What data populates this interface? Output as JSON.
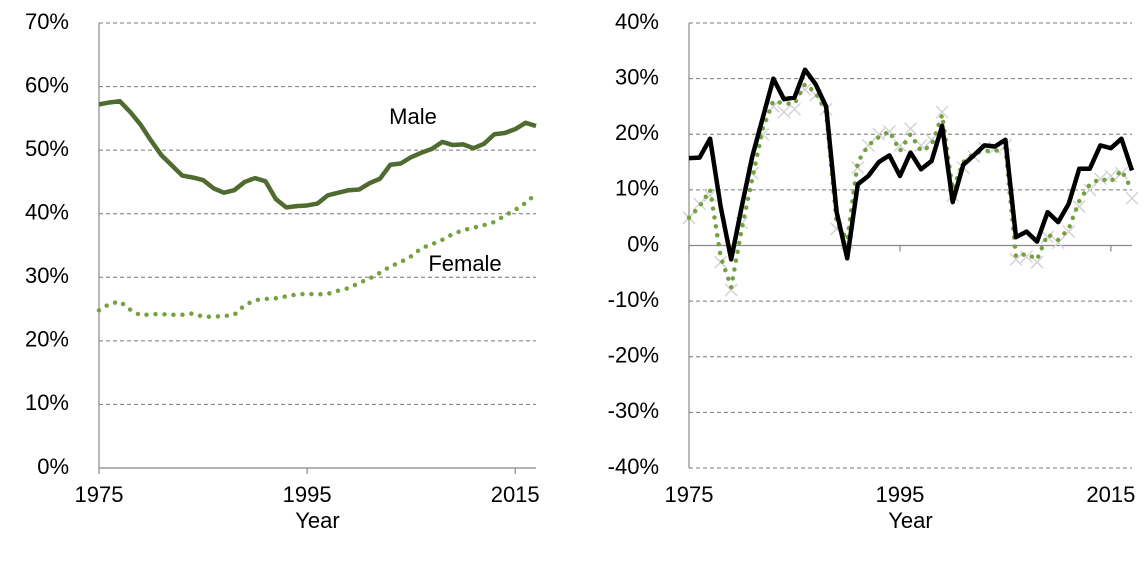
{
  "chart_data": [
    {
      "type": "line",
      "x": [
        1975,
        1976,
        1977,
        1978,
        1979,
        1980,
        1981,
        1982,
        1983,
        1984,
        1985,
        1986,
        1987,
        1988,
        1989,
        1990,
        1991,
        1992,
        1993,
        1994,
        1995,
        1996,
        1997,
        1998,
        1999,
        2000,
        2001,
        2002,
        2003,
        2004,
        2005,
        2006,
        2007,
        2008,
        2009,
        2010,
        2011,
        2012,
        2013,
        2014,
        2015,
        2016,
        2017
      ],
      "series": [
        {
          "name": "Male",
          "color": "#4f6b2f",
          "line_style": "solid",
          "values": [
            57.2,
            57.5,
            57.7,
            56,
            54,
            51.5,
            49.2,
            47.6,
            46,
            45.7,
            45.3,
            44,
            43.3,
            43.7,
            45,
            45.6,
            45.1,
            42.3,
            41,
            41.2,
            41.3,
            41.6,
            42.9,
            43.3,
            43.7,
            43.8,
            44.8,
            45.5,
            47.7,
            47.9,
            48.9,
            49.6,
            50.2,
            51.3,
            50.8,
            50.9,
            50.3,
            51,
            52.5,
            52.7,
            53.3,
            54.3,
            53.8
          ]
        },
        {
          "name": "Female",
          "color": "#77a040",
          "line_style": "dotted",
          "values": [
            24.8,
            25.8,
            26.2,
            24.9,
            24,
            24.2,
            24.2,
            24.1,
            24.1,
            24.3,
            23.8,
            23.8,
            23.9,
            24.1,
            25.6,
            26.4,
            26.6,
            26.7,
            27,
            27.3,
            27.4,
            27.3,
            27.4,
            27.9,
            28.3,
            29.1,
            29.8,
            30.7,
            31.7,
            32.4,
            33.3,
            34.6,
            35.2,
            35.9,
            36.8,
            37.4,
            37.8,
            38.2,
            38.7,
            39.7,
            40.6,
            41.7,
            43.1
          ]
        }
      ],
      "xlim": [
        1975,
        2017
      ],
      "xticks": [
        1975,
        1995,
        2015
      ],
      "ylim": [
        0,
        70
      ],
      "yticks": [
        {
          "value": 0,
          "label": "0%"
        },
        {
          "value": 10,
          "label": "10%"
        },
        {
          "value": 20,
          "label": "20%"
        },
        {
          "value": 30,
          "label": "30%"
        },
        {
          "value": 40,
          "label": "40%"
        },
        {
          "value": 50,
          "label": "50%"
        },
        {
          "value": 60,
          "label": "60%"
        },
        {
          "value": 70,
          "label": "70%"
        }
      ],
      "grid": true,
      "xlabel": "Year",
      "annotations": [
        "Male",
        "Female"
      ]
    },
    {
      "type": "line",
      "x": [
        1975,
        1976,
        1977,
        1978,
        1979,
        1980,
        1981,
        1982,
        1983,
        1984,
        1985,
        1986,
        1987,
        1988,
        1989,
        1990,
        1991,
        1992,
        1993,
        1994,
        1995,
        1996,
        1997,
        1998,
        1999,
        2000,
        2001,
        2002,
        2003,
        2004,
        2005,
        2006,
        2007,
        2008,
        2009,
        2010,
        2011,
        2012,
        2013,
        2014,
        2015,
        2016,
        2017
      ],
      "series": [
        {
          "color": "#d4d4d4",
          "line_style": "markers",
          "values": [
            5,
            7.5,
            9,
            -3,
            -8,
            4,
            13,
            20,
            25,
            24,
            24.5,
            28,
            27,
            24.5,
            3,
            0.5,
            14,
            18,
            20,
            20.5,
            18,
            21,
            18,
            19,
            24,
            9,
            14,
            16,
            17.5,
            17.5,
            18,
            -2.5,
            -2,
            -3,
            1.5,
            0.5,
            2.5,
            7,
            10,
            12,
            12.5,
            13,
            8.5
          ]
        },
        {
          "color": "#77a043",
          "line_style": "dotted",
          "values": [
            5,
            7,
            10,
            -2,
            -7.5,
            3,
            12,
            21,
            26,
            25.5,
            25.5,
            29,
            27.5,
            24,
            4,
            1,
            15,
            18,
            19.5,
            20.5,
            17,
            20,
            17,
            18,
            23.5,
            10,
            15,
            16.5,
            17,
            17,
            17.5,
            -2,
            -1.5,
            -2.5,
            2,
            1,
            3,
            8,
            11,
            12,
            11.5,
            13.5,
            10
          ]
        },
        {
          "color": "#000000",
          "line_style": "solid",
          "values": [
            15.7,
            15.8,
            19.2,
            7,
            -2.5,
            7,
            16,
            23,
            30,
            26.3,
            26.6,
            31.6,
            29,
            25,
            6,
            -2.3,
            11,
            12.5,
            15,
            16.2,
            12.5,
            16.7,
            13.7,
            15.2,
            21.5,
            7.8,
            14.5,
            16.2,
            18,
            17.8,
            19,
            1.5,
            2.5,
            0.7,
            6,
            4.2,
            7.5,
            13.8,
            13.8,
            18,
            17.5,
            19.2,
            13.5
          ]
        }
      ],
      "xlim": [
        1975,
        2017
      ],
      "xticks": [
        1975,
        1995,
        2015
      ],
      "ylim": [
        -40,
        40
      ],
      "yticks": [
        {
          "value": -40,
          "label": "-40%"
        },
        {
          "value": -30,
          "label": "-30%"
        },
        {
          "value": -20,
          "label": "-20%"
        },
        {
          "value": -10,
          "label": "-10%"
        },
        {
          "value": 0,
          "label": "0%"
        },
        {
          "value": 10,
          "label": "10%"
        },
        {
          "value": 20,
          "label": "20%"
        },
        {
          "value": 30,
          "label": "30%"
        },
        {
          "value": 40,
          "label": "40%"
        }
      ],
      "grid": true,
      "xlabel": "Year"
    }
  ]
}
